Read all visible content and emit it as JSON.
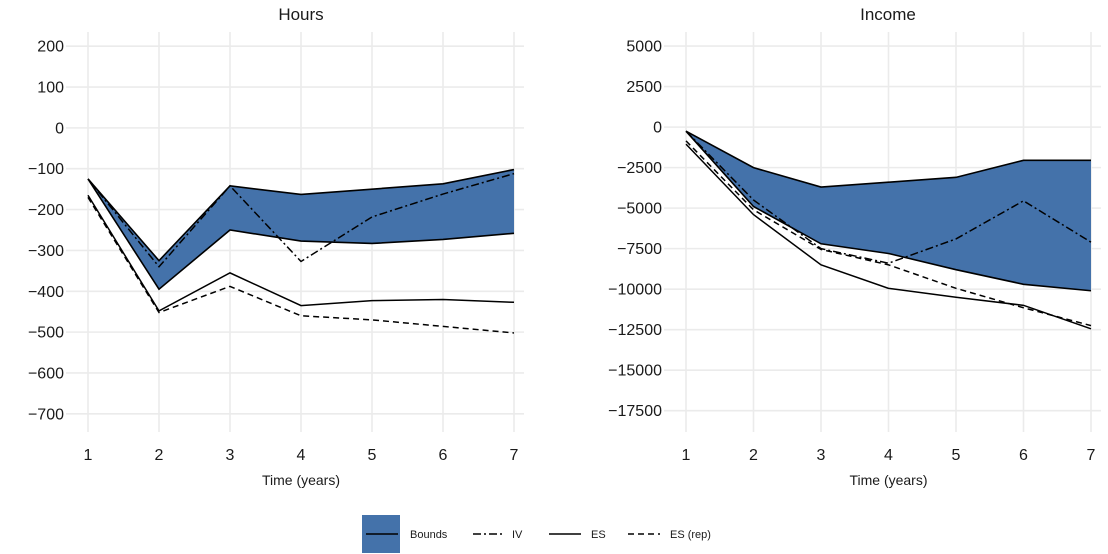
{
  "colors": {
    "band": "#4472AA",
    "grid": "#EBEBEB",
    "line": "#000000"
  },
  "legend": {
    "position": "bottom",
    "items": [
      {
        "key": "bounds",
        "label": "Bounds",
        "glyph": "filled-box-with-line"
      },
      {
        "key": "iv",
        "label": "IV",
        "glyph": "dash-dot-line"
      },
      {
        "key": "es",
        "label": "ES",
        "glyph": "solid-line"
      },
      {
        "key": "es_rep",
        "label": "ES (rep)",
        "glyph": "dashed-line"
      }
    ]
  },
  "chart_data": [
    {
      "type": "line",
      "title": "Hours",
      "xlabel": "Time (years)",
      "ylabel": "",
      "x": [
        1,
        2,
        3,
        4,
        5,
        6,
        7
      ],
      "xlim": [
        1,
        7
      ],
      "ylim": [
        -720,
        220
      ],
      "yticks": [
        200,
        100,
        0,
        -100,
        -200,
        -300,
        -400,
        -500,
        -600,
        -700
      ],
      "ytick_labels": [
        "200",
        "100",
        "0",
        "−100",
        "−200",
        "−300",
        "−400",
        "−500",
        "−600",
        "−700"
      ],
      "xticks": [
        1,
        2,
        3,
        4,
        5,
        6,
        7
      ],
      "xtick_labels": [
        "1",
        "2",
        "3",
        "4",
        "5",
        "6",
        "7"
      ],
      "grid": true,
      "bounds": {
        "upper": [
          -125,
          -325,
          -142,
          -163,
          -150,
          -137,
          -102
        ],
        "lower": [
          -125,
          -395,
          -250,
          -277,
          -283,
          -273,
          -258
        ]
      },
      "series": [
        {
          "name": "IV",
          "style": "dashdot",
          "values": [
            -125,
            -340,
            -142,
            -327,
            -218,
            -162,
            -112
          ]
        },
        {
          "name": "ES",
          "style": "solid",
          "values": [
            -165,
            -448,
            -355,
            -435,
            -423,
            -420,
            -427
          ]
        },
        {
          "name": "ES (rep)",
          "style": "dashed",
          "values": [
            -170,
            -452,
            -388,
            -460,
            -470,
            -486,
            -502
          ]
        }
      ]
    },
    {
      "type": "line",
      "title": "Income",
      "xlabel": "Time (years)",
      "ylabel": "",
      "x": [
        1,
        2,
        3,
        4,
        5,
        6,
        7
      ],
      "xlim": [
        1,
        7
      ],
      "ylim": [
        -18200,
        5500
      ],
      "yticks": [
        5000,
        2500,
        0,
        -2500,
        -5000,
        -7500,
        -10000,
        -12500,
        -15000,
        -17500
      ],
      "ytick_labels": [
        "5000",
        "2500",
        "0",
        "−2500",
        "−5000",
        "−7500",
        "−10000",
        "−12500",
        "−15000",
        "−17500"
      ],
      "xticks": [
        1,
        2,
        3,
        4,
        5,
        6,
        7
      ],
      "xtick_labels": [
        "1",
        "2",
        "3",
        "4",
        "5",
        "6",
        "7"
      ],
      "grid": true,
      "bounds": {
        "upper": [
          -250,
          -2500,
          -3700,
          -3400,
          -3100,
          -2050,
          -2050
        ],
        "lower": [
          -250,
          -4900,
          -7200,
          -7800,
          -8800,
          -9700,
          -10100
        ]
      },
      "series": [
        {
          "name": "IV",
          "style": "dashdot",
          "values": [
            -250,
            -4500,
            -7500,
            -8400,
            -6900,
            -4550,
            -7100
          ]
        },
        {
          "name": "ES",
          "style": "solid",
          "values": [
            -1050,
            -5400,
            -8500,
            -9950,
            -10500,
            -11000,
            -12450
          ]
        },
        {
          "name": "ES (rep)",
          "style": "dashed",
          "values": [
            -850,
            -5100,
            -7550,
            -8500,
            -9950,
            -11150,
            -12250
          ]
        }
      ]
    }
  ]
}
